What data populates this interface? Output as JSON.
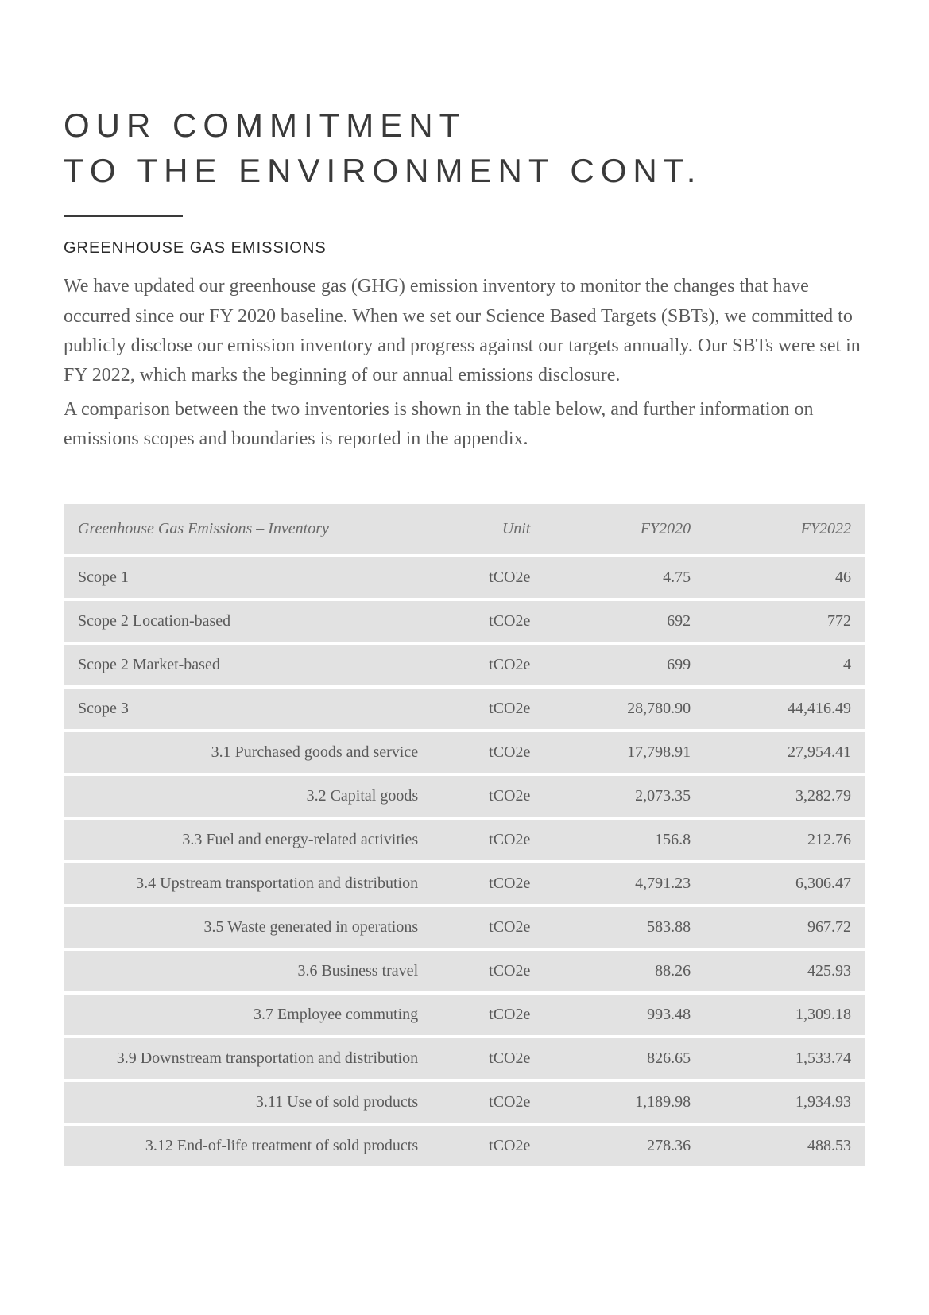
{
  "title_line1": "OUR COMMITMENT",
  "title_line2": "TO THE ENVIRONMENT CONT.",
  "section_heading": "GREENHOUSE GAS EMISSIONS",
  "paragraph1": "We have updated our greenhouse gas (GHG) emission inventory to monitor the changes that have occurred since our FY 2020 baseline. When we set our Science Based Targets (SBTs), we committed to publicly disclose our emission inventory and progress against our targets annually. Our SBTs were set in FY 2022, which marks the beginning of our annual emissions disclosure.",
  "paragraph2": "A comparison between the two inventories is shown in the table below, and further information on emissions scopes and boundaries is reported in the appendix.",
  "table": {
    "columns": {
      "label": "Greenhouse Gas Emissions – Inventory",
      "unit": "Unit",
      "fy2020": "FY2020",
      "fy2022": "FY2022"
    },
    "rows": [
      {
        "label": "Scope 1",
        "unit": "tCO2e",
        "fy2020": "4.75",
        "fy2022": "46",
        "sub": false
      },
      {
        "label": "Scope 2 Location-based",
        "unit": "tCO2e",
        "fy2020": "692",
        "fy2022": "772",
        "sub": false
      },
      {
        "label": "Scope 2 Market-based",
        "unit": "tCO2e",
        "fy2020": "699",
        "fy2022": "4",
        "sub": false
      },
      {
        "label": "Scope 3",
        "unit": "tCO2e",
        "fy2020": "28,780.90",
        "fy2022": "44,416.49",
        "sub": false
      },
      {
        "label": "3.1 Purchased goods and service",
        "unit": "tCO2e",
        "fy2020": "17,798.91",
        "fy2022": "27,954.41",
        "sub": true
      },
      {
        "label": "3.2 Capital goods",
        "unit": "tCO2e",
        "fy2020": "2,073.35",
        "fy2022": "3,282.79",
        "sub": true
      },
      {
        "label": "3.3 Fuel and energy-related activities",
        "unit": "tCO2e",
        "fy2020": "156.8",
        "fy2022": "212.76",
        "sub": true
      },
      {
        "label": "3.4 Upstream transportation and distribution",
        "unit": "tCO2e",
        "fy2020": "4,791.23",
        "fy2022": "6,306.47",
        "sub": true
      },
      {
        "label": "3.5 Waste generated in operations",
        "unit": "tCO2e",
        "fy2020": "583.88",
        "fy2022": "967.72",
        "sub": true
      },
      {
        "label": "3.6 Business travel",
        "unit": "tCO2e",
        "fy2020": "88.26",
        "fy2022": "425.93",
        "sub": true
      },
      {
        "label": "3.7 Employee commuting",
        "unit": "tCO2e",
        "fy2020": "993.48",
        "fy2022": "1,309.18",
        "sub": true
      },
      {
        "label": "3.9 Downstream transportation and distribution",
        "unit": "tCO2e",
        "fy2020": "826.65",
        "fy2022": "1,533.74",
        "sub": true
      },
      {
        "label": "3.11 Use of sold products",
        "unit": "tCO2e",
        "fy2020": "1,189.98",
        "fy2022": "1,934.93",
        "sub": true
      },
      {
        "label": "3.12 End-of-life treatment of sold products",
        "unit": "tCO2e",
        "fy2020": "278.36",
        "fy2022": "488.53",
        "sub": true
      }
    ]
  },
  "colors": {
    "row_bg": "#e2e2e2",
    "text": "#5a5a5a",
    "heading": "#3a3a3a",
    "page_bg": "#ffffff"
  }
}
